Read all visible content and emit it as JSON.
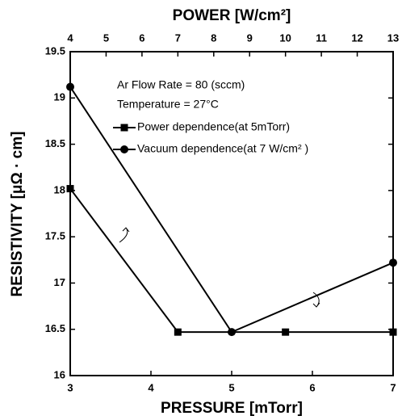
{
  "chart_data": {
    "type": "line",
    "xlabel": "PRESSURE [mTorr]",
    "x2label": "POWER [W/cm²]",
    "ylabel": "RESISTIVITY [μΩ · cm]",
    "annotations": [
      "Ar Flow Rate = 80 (sccm)",
      "Temperature = 27°C"
    ],
    "xlim": [
      3,
      7
    ],
    "xticks": [
      3,
      4,
      5,
      6,
      7
    ],
    "x2lim": [
      4,
      13
    ],
    "x2ticks": [
      4,
      5,
      6,
      7,
      8,
      9,
      10,
      11,
      12,
      13
    ],
    "ylim": [
      16,
      19.5
    ],
    "yticks": [
      16,
      16.5,
      17,
      17.5,
      18,
      18.5,
      19,
      19.5
    ],
    "series": [
      {
        "name": "Power dependence(at 5mTorr)",
        "color": "#000000",
        "marker": "square",
        "axis": "x2",
        "x": [
          4,
          7,
          10,
          13
        ],
        "values": [
          18.02,
          16.47,
          16.47,
          16.47
        ]
      },
      {
        "name": "Vacuum dependence(at 7 W/cm² )",
        "color": "#000000",
        "marker": "circle",
        "x": [
          3,
          5,
          7
        ],
        "values": [
          19.12,
          16.47,
          17.22
        ]
      }
    ]
  }
}
